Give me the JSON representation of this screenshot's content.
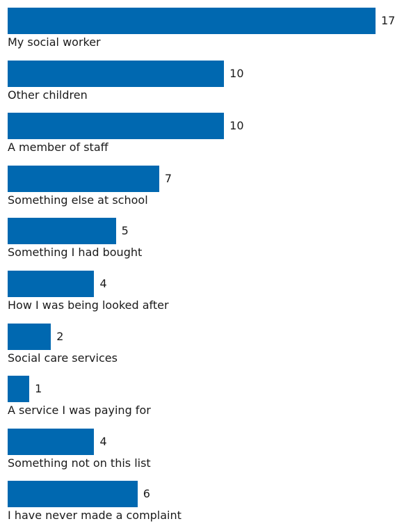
{
  "chart_data": {
    "type": "bar",
    "orientation": "horizontal",
    "title": "",
    "xlabel": "",
    "ylabel": "",
    "grid": false,
    "categories": [
      "My social worker",
      "Other children",
      "A member of staff",
      "Something else at school",
      "Something I had bought",
      "How I was being looked after",
      "Social care services",
      "A service I was paying for",
      "Something not on this list",
      "I have never made a complaint"
    ],
    "values": [
      17,
      10,
      10,
      7,
      5,
      4,
      2,
      1,
      4,
      6
    ],
    "xlim": [
      0,
      17
    ],
    "bar_color": "#0068b0"
  }
}
